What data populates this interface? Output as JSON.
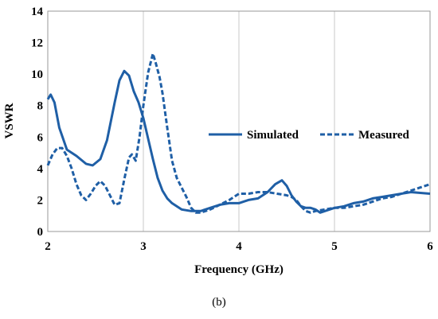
{
  "caption": "(b)",
  "chart_data": {
    "type": "line",
    "xlabel": "Frequency (GHz)",
    "ylabel": "VSWR",
    "xlim": [
      2,
      6
    ],
    "ylim": [
      0,
      14
    ],
    "xticks": [
      2,
      3,
      4,
      5,
      6
    ],
    "yticks": [
      0,
      2,
      4,
      6,
      8,
      10,
      12,
      14
    ],
    "grid": "vertical",
    "legend_position": "center-right",
    "color": "#1f5fa6",
    "series": [
      {
        "name": "Simulated",
        "style": "solid",
        "x": [
          2.0,
          2.03,
          2.07,
          2.12,
          2.2,
          2.3,
          2.4,
          2.47,
          2.55,
          2.62,
          2.7,
          2.75,
          2.8,
          2.85,
          2.9,
          2.95,
          3.0,
          3.05,
          3.1,
          3.15,
          3.2,
          3.25,
          3.3,
          3.4,
          3.5,
          3.6,
          3.7,
          3.8,
          3.9,
          4.0,
          4.1,
          4.2,
          4.3,
          4.38,
          4.45,
          4.5,
          4.55,
          4.6,
          4.65,
          4.7,
          4.75,
          4.8,
          4.85,
          4.9,
          5.0,
          5.1,
          5.2,
          5.3,
          5.4,
          5.5,
          5.6,
          5.7,
          5.8,
          5.9,
          6.0
        ],
        "y": [
          8.4,
          8.7,
          8.2,
          6.6,
          5.2,
          4.8,
          4.3,
          4.2,
          4.6,
          5.8,
          8.2,
          9.6,
          10.2,
          9.9,
          8.9,
          8.2,
          7.2,
          5.9,
          4.6,
          3.4,
          2.6,
          2.1,
          1.8,
          1.4,
          1.3,
          1.3,
          1.5,
          1.7,
          1.8,
          1.8,
          2.0,
          2.1,
          2.5,
          3.0,
          3.25,
          2.9,
          2.3,
          1.9,
          1.6,
          1.5,
          1.5,
          1.4,
          1.2,
          1.3,
          1.5,
          1.6,
          1.8,
          1.9,
          2.1,
          2.2,
          2.3,
          2.4,
          2.5,
          2.45,
          2.4
        ]
      },
      {
        "name": "Measured",
        "style": "dashed",
        "x": [
          2.0,
          2.05,
          2.1,
          2.15,
          2.2,
          2.25,
          2.3,
          2.35,
          2.4,
          2.45,
          2.5,
          2.55,
          2.6,
          2.65,
          2.7,
          2.75,
          2.8,
          2.85,
          2.88,
          2.92,
          2.96,
          3.0,
          3.05,
          3.1,
          3.13,
          3.17,
          3.2,
          3.25,
          3.3,
          3.35,
          3.4,
          3.45,
          3.5,
          3.55,
          3.6,
          3.7,
          3.8,
          3.9,
          4.0,
          4.1,
          4.2,
          4.3,
          4.4,
          4.5,
          4.55,
          4.6,
          4.65,
          4.7,
          4.75,
          4.8,
          4.9,
          5.0,
          5.1,
          5.2,
          5.3,
          5.4,
          5.5,
          5.6,
          5.7,
          5.8,
          5.9,
          6.0
        ],
        "y": [
          4.2,
          4.9,
          5.3,
          5.3,
          4.8,
          4.0,
          3.0,
          2.3,
          2.0,
          2.4,
          2.9,
          3.2,
          2.9,
          2.3,
          1.7,
          1.8,
          3.3,
          4.7,
          4.9,
          4.5,
          6.0,
          8.0,
          10.1,
          11.3,
          10.7,
          9.8,
          8.8,
          6.6,
          4.5,
          3.4,
          2.8,
          2.2,
          1.5,
          1.2,
          1.2,
          1.4,
          1.7,
          2.0,
          2.4,
          2.4,
          2.5,
          2.5,
          2.4,
          2.3,
          2.2,
          2.0,
          1.6,
          1.3,
          1.2,
          1.3,
          1.4,
          1.5,
          1.5,
          1.6,
          1.7,
          1.9,
          2.1,
          2.2,
          2.4,
          2.6,
          2.8,
          3.0
        ]
      }
    ]
  }
}
